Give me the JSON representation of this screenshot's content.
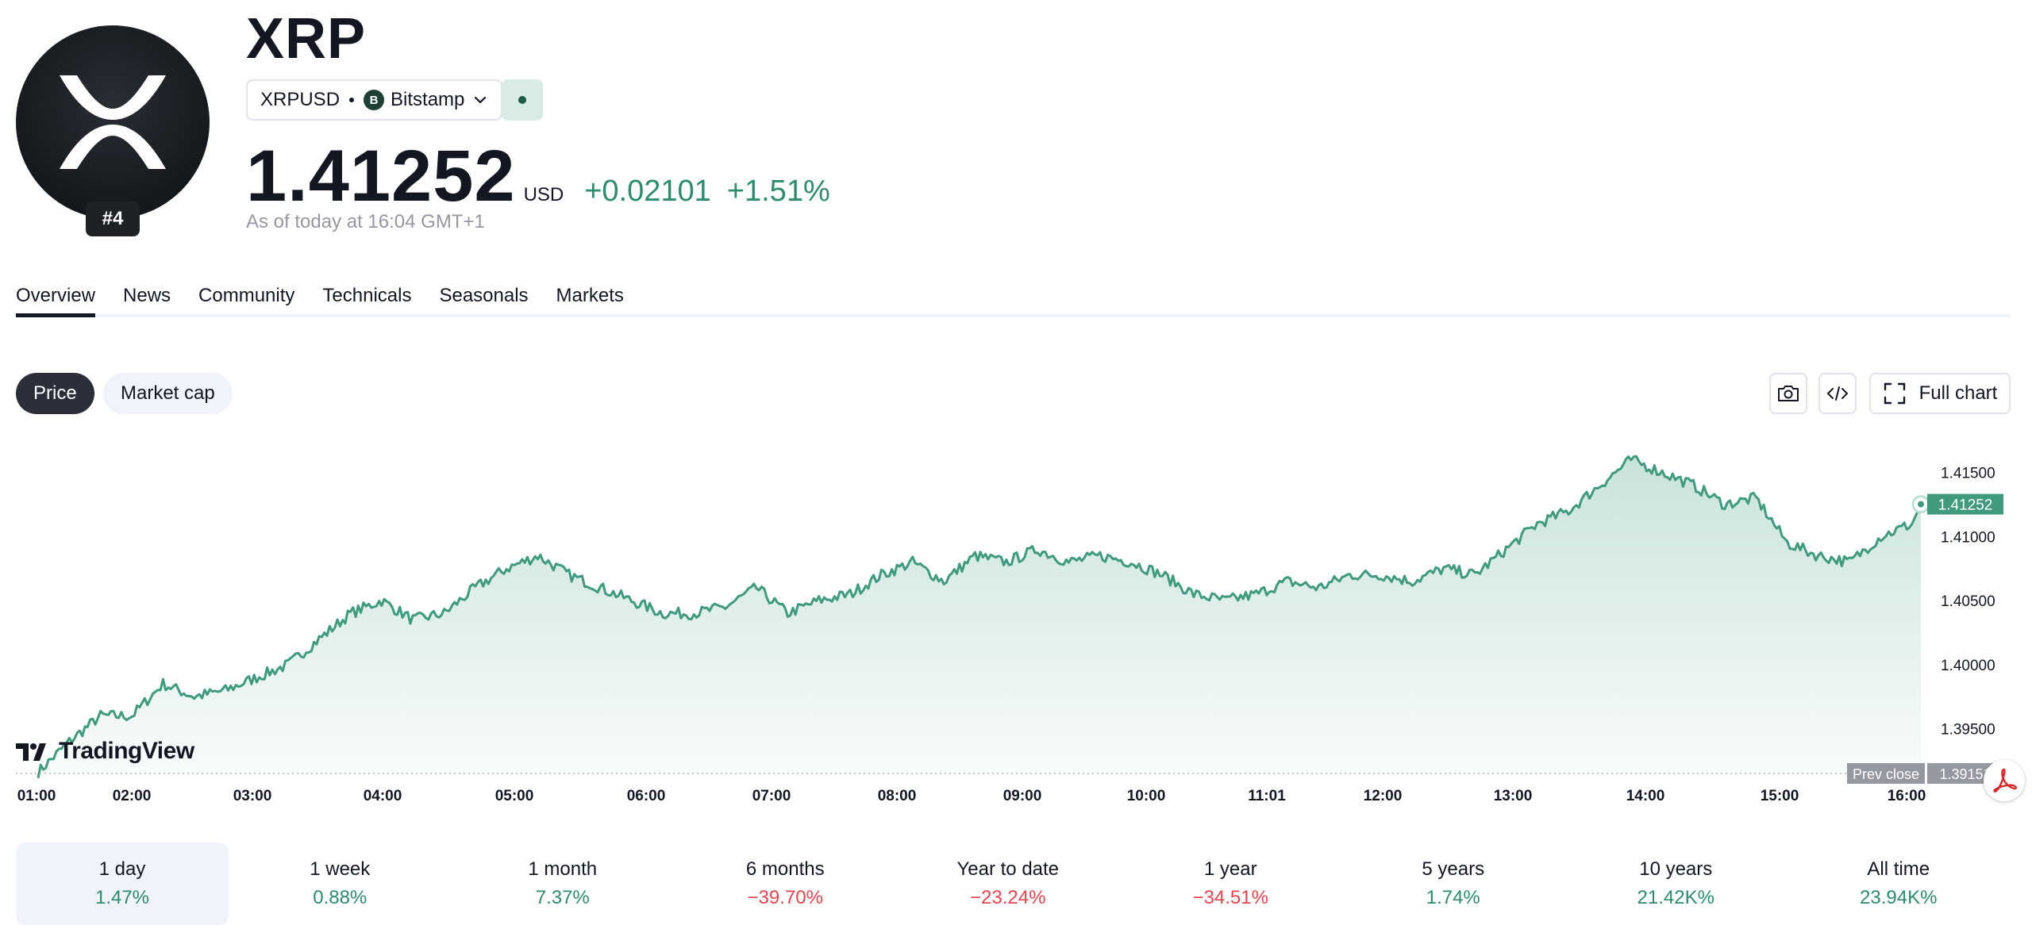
{
  "header": {
    "rank": "#4",
    "symbol": "XRP",
    "pair": "XRPUSD",
    "exchange": "Bitstamp",
    "exchange_icon_letter": "B",
    "price": "1.41252",
    "currency": "USD",
    "change": "+0.02101",
    "change_pct": "+1.51%",
    "as_of": "As of today at 16:04 GMT+1"
  },
  "tabs": [
    "Overview",
    "News",
    "Community",
    "Technicals",
    "Seasonals",
    "Markets"
  ],
  "chart_controls": {
    "price": "Price",
    "market_cap": "Market cap",
    "full_chart": "Full chart"
  },
  "branding": {
    "tradingview": "TradingView"
  },
  "colors": {
    "up": "#2e8b6c",
    "down": "#e5454f",
    "line": "#3f9a7e"
  },
  "chart_data": {
    "type": "area",
    "x_ticks": [
      "01:00",
      "02:00",
      "03:00",
      "04:00",
      "05:00",
      "06:00",
      "07:00",
      "08:00",
      "09:00",
      "10:00",
      "11:01",
      "12:00",
      "13:00",
      "14:00",
      "15:00",
      "16:00"
    ],
    "y_ticks": [
      "1.41500",
      "1.41000",
      "1.40500",
      "1.40000",
      "1.39500"
    ],
    "ylim": [
      1.3912,
      1.4172
    ],
    "prev_close_label": "Prev close",
    "prev_close": "1.39151",
    "last_price": "1.41252",
    "x": [
      1.0,
      1.25,
      1.5,
      1.75,
      2.0,
      2.25,
      2.5,
      2.75,
      3.0,
      3.25,
      3.5,
      3.75,
      4.0,
      4.25,
      4.5,
      4.75,
      5.0,
      5.25,
      5.5,
      5.75,
      6.0,
      6.25,
      6.5,
      6.75,
      7.0,
      7.25,
      7.5,
      7.75,
      8.0,
      8.25,
      8.5,
      8.75,
      9.0,
      9.25,
      9.5,
      9.75,
      10.0,
      10.25,
      10.5,
      10.75,
      11.0,
      11.25,
      11.5,
      11.75,
      12.0,
      12.25,
      12.5,
      12.75,
      13.0,
      13.25,
      13.5,
      13.75,
      14.0,
      14.25,
      14.5,
      14.75,
      15.0,
      15.25,
      15.5,
      15.75,
      16.0,
      16.07
    ],
    "values": [
      1.3916,
      1.394,
      1.396,
      1.396,
      1.3985,
      1.3975,
      1.398,
      1.399,
      1.4,
      1.402,
      1.404,
      1.405,
      1.4035,
      1.404,
      1.406,
      1.4075,
      1.4085,
      1.407,
      1.406,
      1.405,
      1.404,
      1.404,
      1.4045,
      1.406,
      1.404,
      1.405,
      1.4055,
      1.407,
      1.408,
      1.4065,
      1.4085,
      1.408,
      1.409,
      1.408,
      1.4085,
      1.408,
      1.407,
      1.4055,
      1.405,
      1.4055,
      1.4065,
      1.406,
      1.407,
      1.407,
      1.4065,
      1.4075,
      1.407,
      1.409,
      1.411,
      1.412,
      1.414,
      1.416,
      1.415,
      1.414,
      1.4125,
      1.413,
      1.4095,
      1.4085,
      1.408,
      1.41,
      1.411,
      1.41252
    ]
  }
}
